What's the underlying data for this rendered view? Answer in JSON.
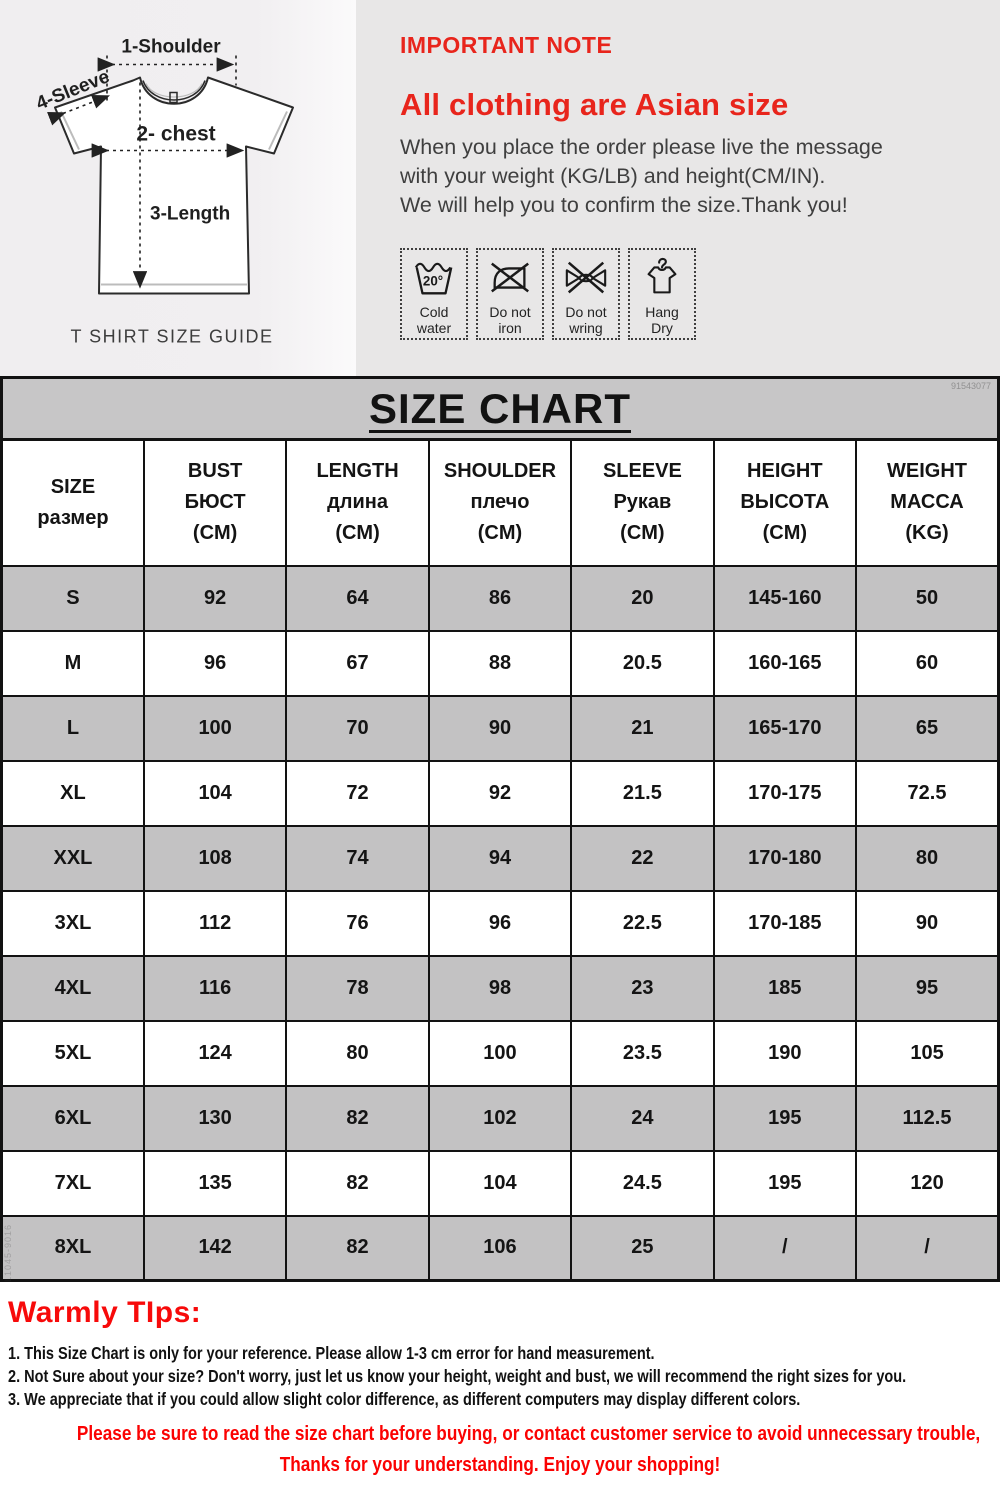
{
  "colors": {
    "accent_red": "#e8251c",
    "tips_red": "#fb0202",
    "note_panel_gray": "#e8e7e7",
    "guide_panel_light": "#f1eff0",
    "title_bar_gray": "#c7c6c7",
    "row_gray": "#c3c2c3",
    "border_black": "#121212"
  },
  "top": {
    "size_guide": {
      "shoulder_label": "1-Shoulder",
      "sleeve_label": "4-Sleeve",
      "chest_label": "2- chest",
      "length_label": "3-Length",
      "caption": "T SHIRT SIZE GUIDE"
    },
    "note": {
      "kicker": "IMPORTANT NOTE",
      "headline": "All clothing are Asian size",
      "body_lines": [
        "When you place the order please live the message",
        "with your weight (KG/LB) and height(CM/IN).",
        "We will help you to confirm the size.Thank you!"
      ]
    },
    "care_icons": [
      {
        "icon": "cold-water-icon",
        "temp": "20°",
        "line1": "Cold",
        "line2": "water"
      },
      {
        "icon": "do-not-iron-icon",
        "line1": "Do not",
        "line2": "iron"
      },
      {
        "icon": "do-not-wring-icon",
        "line1": "Do not",
        "line2": "wring"
      },
      {
        "icon": "hang-dry-icon",
        "line1": "Hang",
        "line2": "Dry"
      }
    ]
  },
  "chart_data": {
    "type": "table",
    "title": "SIZE CHART",
    "columns": [
      {
        "key": "size",
        "lines": [
          "SIZE",
          "размер"
        ]
      },
      {
        "key": "bust",
        "lines": [
          "BUST",
          "БЮСТ",
          "(CM)"
        ]
      },
      {
        "key": "length",
        "lines": [
          "LENGTH",
          "длина",
          "(CM)"
        ]
      },
      {
        "key": "shoulder",
        "lines": [
          "SHOULDER",
          "плечо",
          "(CM)"
        ]
      },
      {
        "key": "sleeve",
        "lines": [
          "SLEEVE",
          "Рукав",
          "(CM)"
        ]
      },
      {
        "key": "height",
        "lines": [
          "HEIGHT",
          "ВЫСОТА",
          "(CM)"
        ]
      },
      {
        "key": "weight",
        "lines": [
          "WEIGHT",
          "МАССА",
          "(KG)"
        ]
      }
    ],
    "rows": [
      {
        "size": "S",
        "values": [
          "92",
          "64",
          "86",
          "20",
          "145-160",
          "50"
        ]
      },
      {
        "size": "M",
        "values": [
          "96",
          "67",
          "88",
          "20.5",
          "160-165",
          "60"
        ]
      },
      {
        "size": "L",
        "values": [
          "100",
          "70",
          "90",
          "21",
          "165-170",
          "65"
        ]
      },
      {
        "size": "XL",
        "values": [
          "104",
          "72",
          "92",
          "21.5",
          "170-175",
          "72.5"
        ]
      },
      {
        "size": "XXL",
        "values": [
          "108",
          "74",
          "94",
          "22",
          "170-180",
          "80"
        ]
      },
      {
        "size": "3XL",
        "values": [
          "112",
          "76",
          "96",
          "22.5",
          "170-185",
          "90"
        ]
      },
      {
        "size": "4XL",
        "values": [
          "116",
          "78",
          "98",
          "23",
          "185",
          "95"
        ]
      },
      {
        "size": "5XL",
        "values": [
          "124",
          "80",
          "100",
          "23.5",
          "190",
          "105"
        ]
      },
      {
        "size": "6XL",
        "values": [
          "130",
          "82",
          "102",
          "24",
          "195",
          "112.5"
        ]
      },
      {
        "size": "7XL",
        "values": [
          "135",
          "82",
          "104",
          "24.5",
          "195",
          "120"
        ]
      },
      {
        "size": "8XL",
        "values": [
          "142",
          "82",
          "106",
          "25",
          "/",
          "/"
        ]
      }
    ]
  },
  "watermarks": {
    "top_right": "91543077",
    "left_side": "L1045-9016"
  },
  "tips": {
    "heading": "Warmly TIps:",
    "lines": [
      "1. This Size Chart is only for your reference. Please allow 1-3 cm error for hand measurement.",
      "2. Not Sure about your size? Don't worry, just let us know your height, weight and bust, we will recommend the right sizes for you.",
      "3. We appreciate that if you could allow slight color difference, as different computers may display different colors."
    ],
    "red_lines": [
      "Please be sure to read the size chart before buying, or contact customer service to avoid unnecessary trouble,",
      "Thanks for your understanding. Enjoy your shopping!"
    ]
  }
}
